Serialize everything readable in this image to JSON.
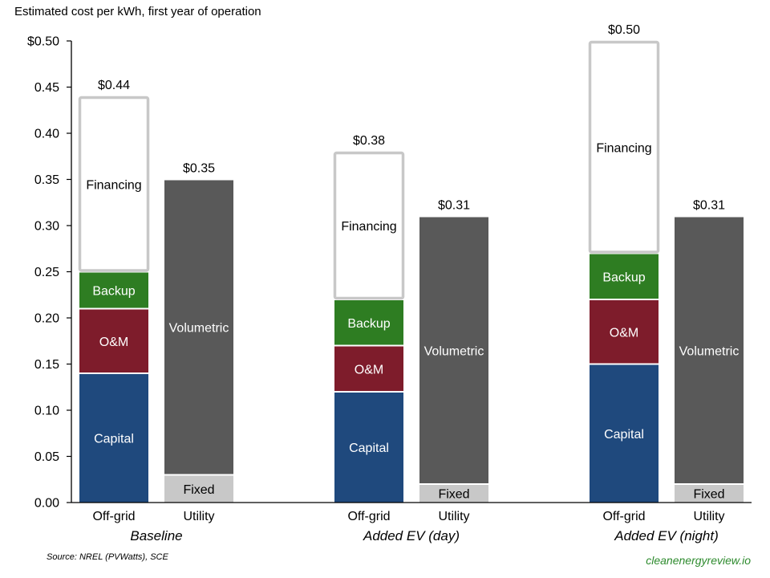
{
  "chart_data": {
    "type": "bar",
    "stacked": true,
    "title": "Estimated cost per kWh, first year of operation",
    "xlabel": "",
    "ylabel": "",
    "ylim": [
      0,
      0.5
    ],
    "yticks": [
      0,
      0.05,
      0.1,
      0.15,
      0.2,
      0.25,
      0.3,
      0.35,
      0.4,
      0.45,
      0.5
    ],
    "ytick_labels": [
      "0.00",
      "0.05",
      "0.10",
      "0.15",
      "0.20",
      "0.25",
      "0.30",
      "0.35",
      "0.40",
      "0.45",
      "$0.50"
    ],
    "grid": false,
    "legend": "none (segments labelled inline)",
    "groups": [
      {
        "name": "Baseline",
        "bars": [
          {
            "label": "Off-grid",
            "total_label": "$0.44",
            "segments": [
              {
                "name": "Capital",
                "value": 0.14
              },
              {
                "name": "O&M",
                "value": 0.07
              },
              {
                "name": "Backup",
                "value": 0.04
              },
              {
                "name": "Financing",
                "value": 0.19
              }
            ]
          },
          {
            "label": "Utility",
            "total_label": "$0.35",
            "segments": [
              {
                "name": "Fixed",
                "value": 0.03
              },
              {
                "name": "Volumetric",
                "value": 0.32
              }
            ]
          }
        ]
      },
      {
        "name": "Added EV (day)",
        "bars": [
          {
            "label": "Off-grid",
            "total_label": "$0.38",
            "segments": [
              {
                "name": "Capital",
                "value": 0.12
              },
              {
                "name": "O&M",
                "value": 0.05
              },
              {
                "name": "Backup",
                "value": 0.05
              },
              {
                "name": "Financing",
                "value": 0.16
              }
            ]
          },
          {
            "label": "Utility",
            "total_label": "$0.31",
            "segments": [
              {
                "name": "Fixed",
                "value": 0.02
              },
              {
                "name": "Volumetric",
                "value": 0.29
              }
            ]
          }
        ]
      },
      {
        "name": "Added EV (night)",
        "bars": [
          {
            "label": "Off-grid",
            "total_label": "$0.50",
            "segments": [
              {
                "name": "Capital",
                "value": 0.15
              },
              {
                "name": "O&M",
                "value": 0.07
              },
              {
                "name": "Backup",
                "value": 0.05
              },
              {
                "name": "Financing",
                "value": 0.23
              }
            ]
          },
          {
            "label": "Utility",
            "total_label": "$0.31",
            "segments": [
              {
                "name": "Fixed",
                "value": 0.02
              },
              {
                "name": "Volumetric",
                "value": 0.29
              }
            ]
          }
        ]
      }
    ],
    "segment_colors": {
      "Capital": "#1F497D",
      "O&M": "#7E1C2B",
      "Backup": "#2E7D22",
      "Financing": "#FFFFFF",
      "Fixed": "#C8C8C8",
      "Volumetric": "#595959"
    },
    "segment_text_colors": {
      "Capital": "#FFFFFF",
      "O&M": "#FFFFFF",
      "Backup": "#FFFFFF",
      "Financing": "#000000",
      "Fixed": "#000000",
      "Volumetric": "#FFFFFF"
    },
    "financing_border_color": "#C8C8C8"
  },
  "source": "Source: NREL (PVWatts), SCE",
  "brand": "cleanenergyreview.io",
  "brand_color": "#2E8B2E"
}
